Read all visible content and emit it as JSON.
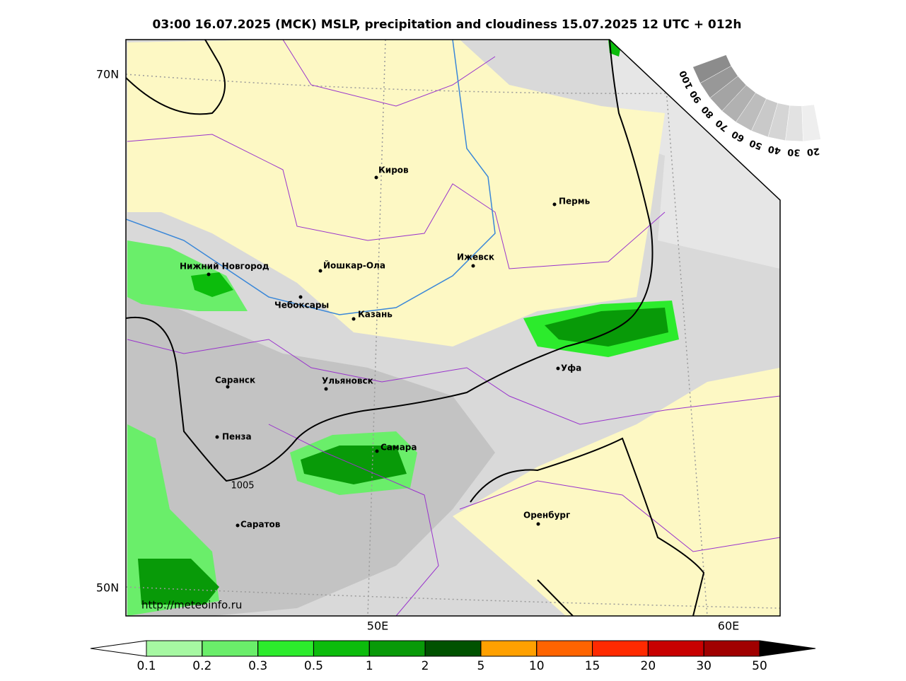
{
  "map": {
    "title": "03:00 16.07.2025 (МСК) MSLP, precipitation and cloudiness 15.07.2025 12 UTC + 012h",
    "lat_labels": [
      "70N",
      "50N"
    ],
    "lon_labels": [
      "50E",
      "60E"
    ],
    "cities": [
      "Киров",
      "Пермь",
      "Нижний Новгород",
      "Йошкар-Ола",
      "Ижевск",
      "Чебоксары",
      "Казань",
      "Уфа",
      "Саранск",
      "Ульяновск",
      "Пенза",
      "Самара",
      "Оренбург",
      "Саратов"
    ],
    "isobar_label": "1005",
    "url": "http://meteoinfo.ru",
    "cloud_scale": [
      100,
      90,
      80,
      70,
      60,
      50,
      40,
      30,
      20
    ],
    "precip_scale": {
      "ticks": [
        0.1,
        0.2,
        0.3,
        0.5,
        1,
        2,
        5,
        10,
        15,
        20,
        30,
        50
      ],
      "colors": [
        "#a6f8a2",
        "#6aee6a",
        "#2ceb2c",
        "#0cbc0c",
        "#089a08",
        "#005200",
        "#ffa000",
        "#ff6400",
        "#ff2a00",
        "#c80000",
        "#a00000"
      ],
      "under_color": "#ffffff",
      "over_color": "#000000"
    }
  }
}
